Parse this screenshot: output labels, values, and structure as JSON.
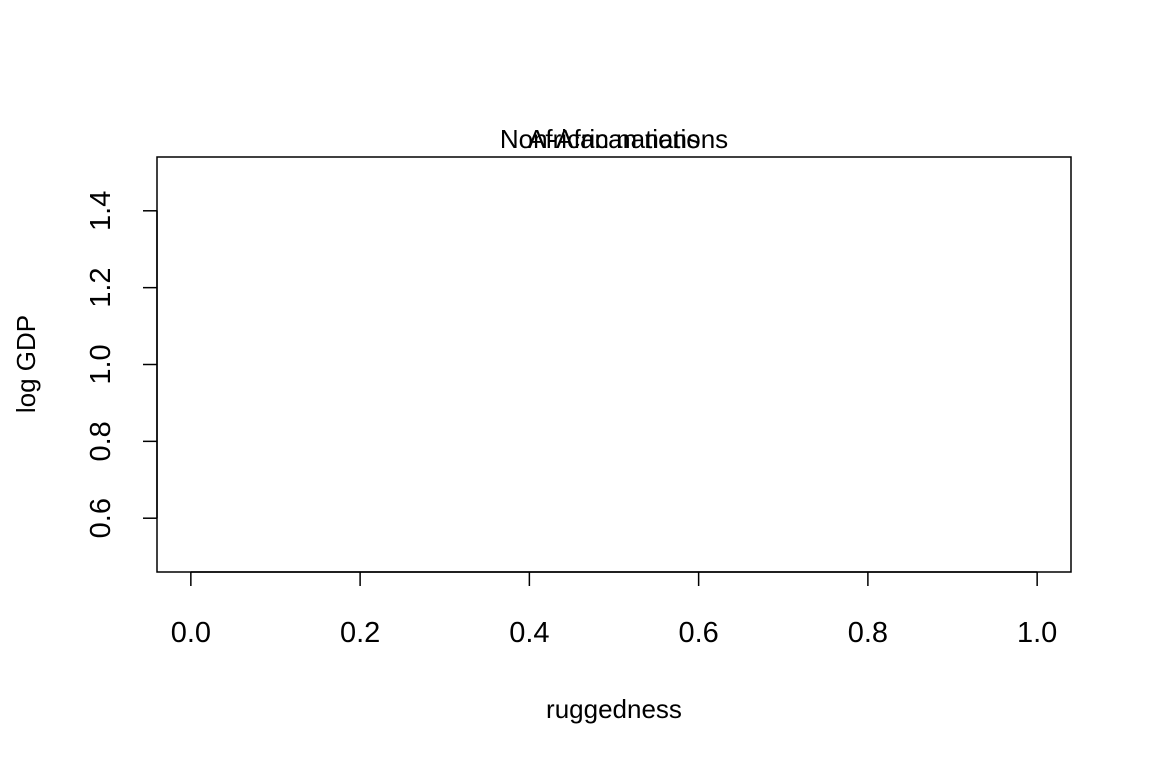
{
  "chart_data": {
    "type": "scatter",
    "titles": [
      "Non-African nations",
      "African nations"
    ],
    "xlabel": "ruggedness",
    "ylabel": "log GDP",
    "xlim": [
      -0.04,
      1.04
    ],
    "ylim": [
      0.46,
      1.54
    ],
    "xticks": [
      "0.0",
      "0.2",
      "0.4",
      "0.6",
      "0.8",
      "1.0"
    ],
    "yticks": [
      "0.6",
      "0.8",
      "1.0",
      "1.2",
      "1.4"
    ],
    "series": [],
    "grid": false,
    "legend": "none",
    "colors": {
      "axis": "#000000",
      "background": "#ffffff"
    }
  }
}
